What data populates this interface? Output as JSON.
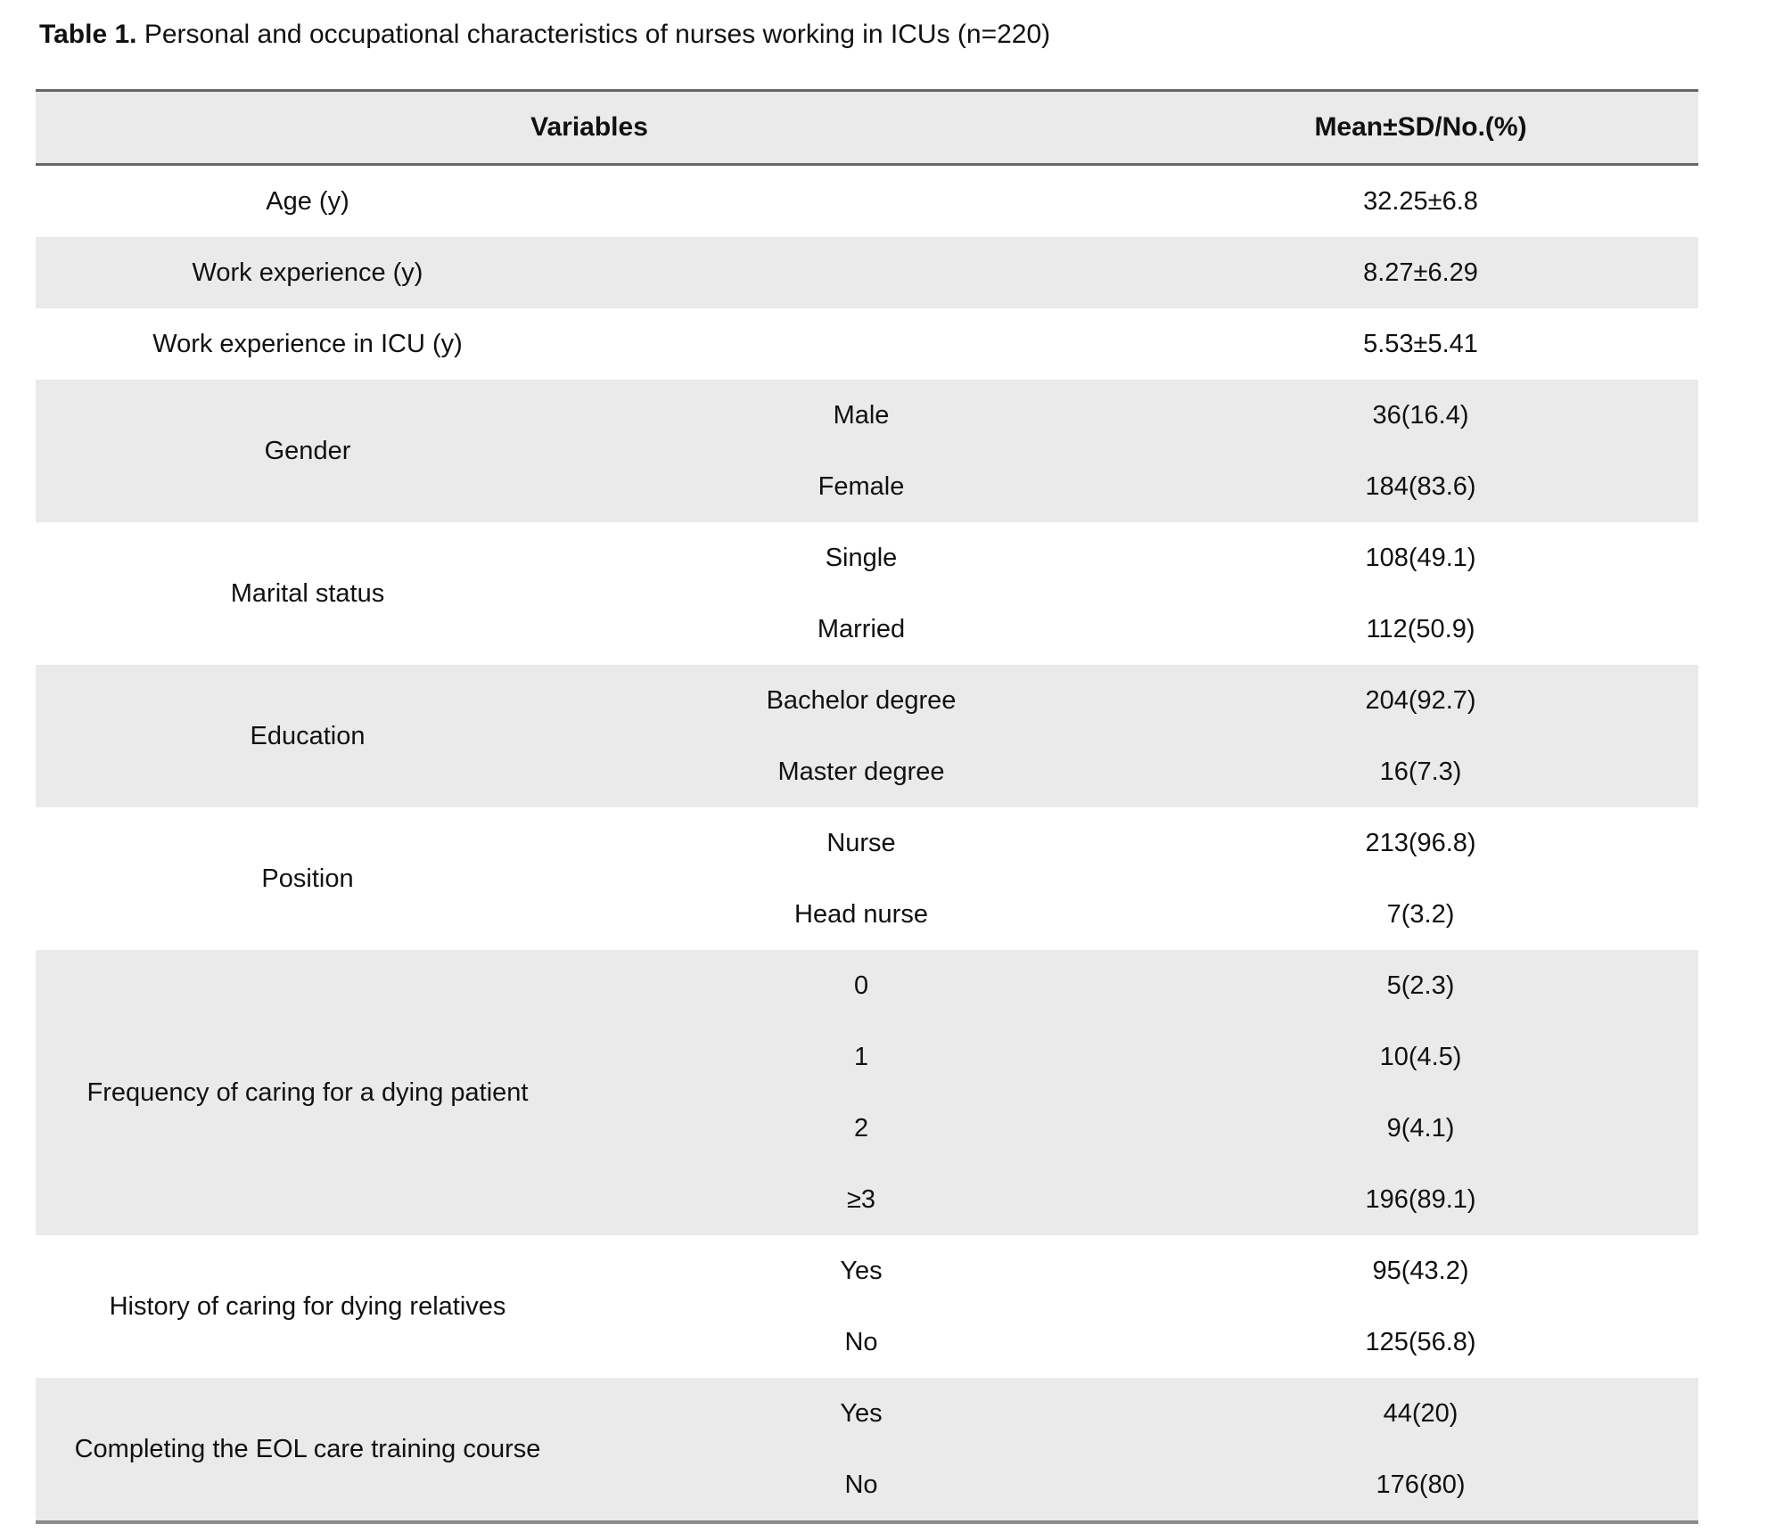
{
  "title": {
    "label": "Table 1.",
    "text": " Personal and occupational characteristics of nurses working in ICUs (n=220)"
  },
  "table": {
    "headers": {
      "variables": "Variables",
      "value": "Mean±SD/No.(%)"
    },
    "groups": [
      {
        "label": "Age (y)",
        "rows": [
          {
            "category": "",
            "value": "32.25±6.8"
          }
        ]
      },
      {
        "label": "Work experience (y)",
        "rows": [
          {
            "category": "",
            "value": "8.27±6.29"
          }
        ]
      },
      {
        "label": "Work experience in ICU (y)",
        "rows": [
          {
            "category": "",
            "value": "5.53±5.41"
          }
        ]
      },
      {
        "label": "Gender",
        "rows": [
          {
            "category": "Male",
            "value": "36(16.4)"
          },
          {
            "category": "Female",
            "value": "184(83.6)"
          }
        ]
      },
      {
        "label": "Marital status",
        "rows": [
          {
            "category": "Single",
            "value": "108(49.1)"
          },
          {
            "category": "Married",
            "value": "112(50.9)"
          }
        ]
      },
      {
        "label": "Education",
        "rows": [
          {
            "category": "Bachelor degree",
            "value": "204(92.7)"
          },
          {
            "category": "Master degree",
            "value": "16(7.3)"
          }
        ]
      },
      {
        "label": "Position",
        "rows": [
          {
            "category": "Nurse",
            "value": "213(96.8)"
          },
          {
            "category": "Head nurse",
            "value": "7(3.2)"
          }
        ]
      },
      {
        "label": "Frequency of caring for a dying patient",
        "rows": [
          {
            "category": "0",
            "value": "5(2.3)"
          },
          {
            "category": "1",
            "value": "10(4.5)"
          },
          {
            "category": "2",
            "value": "9(4.1)"
          },
          {
            "category": "≥3",
            "value": "196(89.1)"
          }
        ]
      },
      {
        "label": "History of caring for dying relatives",
        "rows": [
          {
            "category": "Yes",
            "value": "95(43.2)"
          },
          {
            "category": "No",
            "value": "125(56.8)"
          }
        ]
      },
      {
        "label": "Completing the EOL care training course",
        "rows": [
          {
            "category": "Yes",
            "value": "44(20)"
          },
          {
            "category": "No",
            "value": "176(80)"
          }
        ]
      }
    ]
  }
}
